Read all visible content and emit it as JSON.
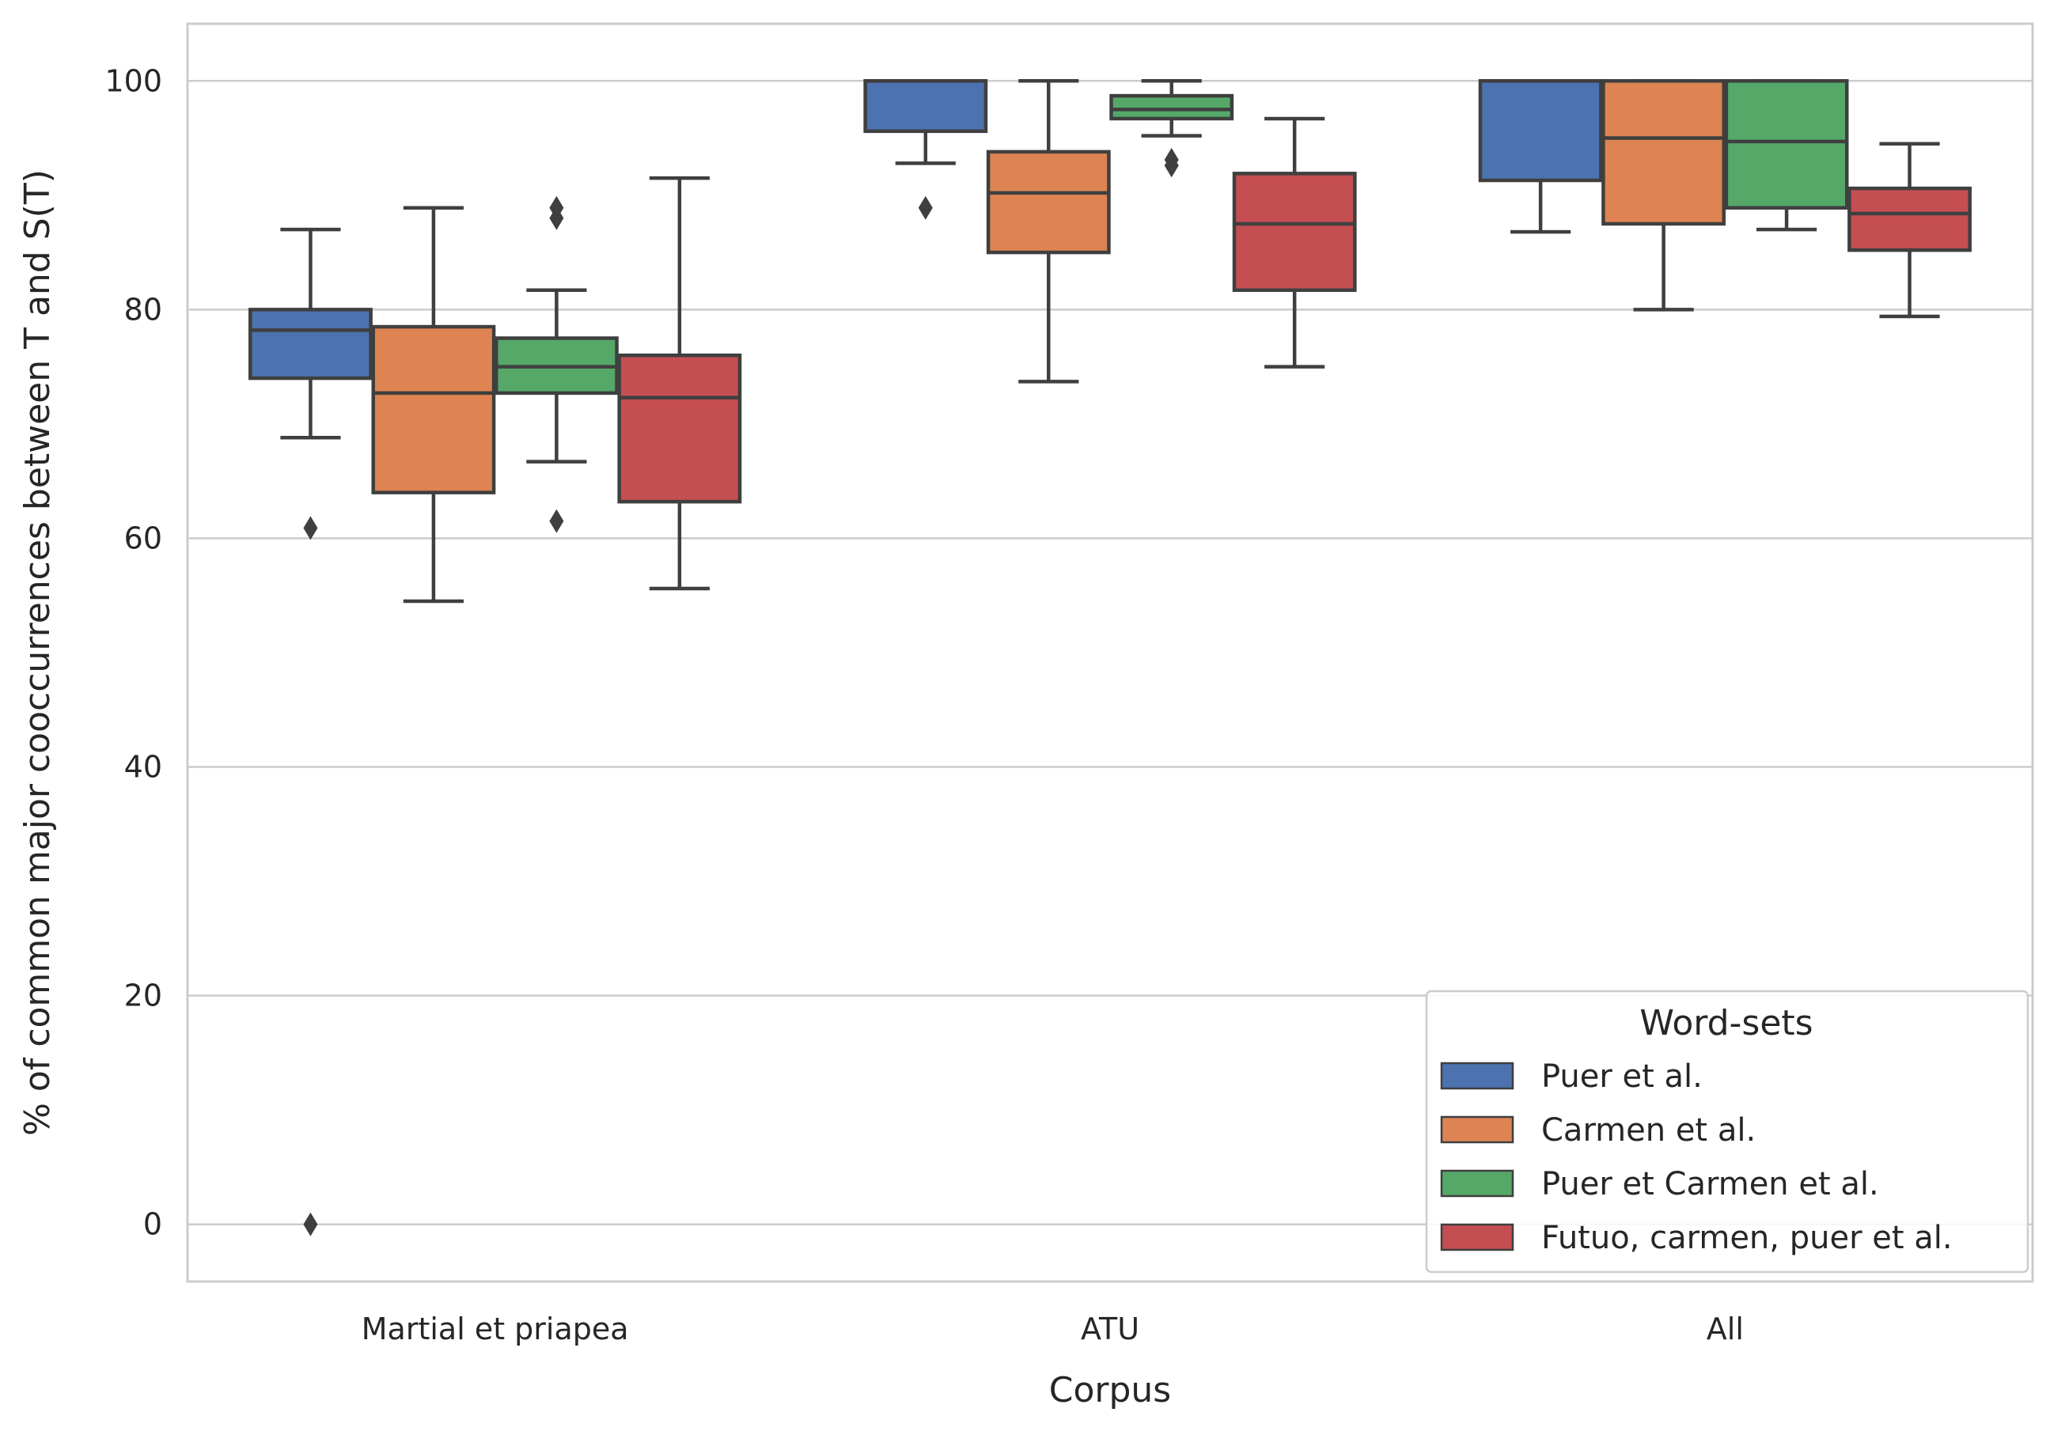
{
  "chart_data": {
    "type": "boxplot",
    "xlabel": "Corpus",
    "ylabel": "% of common major cooccurrences between T and S(T)",
    "categories": [
      "Martial et priapea",
      "ATU",
      "All"
    ],
    "ylim": [
      -5,
      105
    ],
    "yticks": [
      0,
      20,
      40,
      60,
      80,
      100
    ],
    "grid": "horizontal",
    "legend": {
      "title": "Word-sets",
      "position": "bottom-right"
    },
    "series": [
      {
        "name": "Puer et al.",
        "color": "#4c72b0",
        "boxes": [
          {
            "whisker_low": 68.8,
            "q1": 74.0,
            "median": 78.2,
            "q3": 80.0,
            "whisker_high": 87.0,
            "outliers": [
              60.9,
              0.0
            ]
          },
          {
            "whisker_low": 92.8,
            "q1": 95.6,
            "median": 100.0,
            "q3": 100.0,
            "whisker_high": 100.0,
            "outliers": [
              88.9
            ]
          },
          {
            "whisker_low": 86.8,
            "q1": 91.3,
            "median": 100.0,
            "q3": 100.0,
            "whisker_high": 100.0,
            "outliers": []
          }
        ]
      },
      {
        "name": "Carmen et al.",
        "color": "#dd8452",
        "boxes": [
          {
            "whisker_low": 54.5,
            "q1": 64.0,
            "median": 72.7,
            "q3": 78.5,
            "whisker_high": 88.9,
            "outliers": []
          },
          {
            "whisker_low": 73.7,
            "q1": 85.0,
            "median": 90.2,
            "q3": 93.8,
            "whisker_high": 100.0,
            "outliers": []
          },
          {
            "whisker_low": 80.0,
            "q1": 87.5,
            "median": 95.0,
            "q3": 100.0,
            "whisker_high": 100.0,
            "outliers": []
          }
        ]
      },
      {
        "name": "Puer et Carmen et al.",
        "color": "#55a868",
        "boxes": [
          {
            "whisker_low": 66.7,
            "q1": 72.7,
            "median": 75.0,
            "q3": 77.5,
            "whisker_high": 81.7,
            "outliers": [
              61.5,
              88.0,
              88.9
            ]
          },
          {
            "whisker_low": 95.2,
            "q1": 96.7,
            "median": 97.5,
            "q3": 98.7,
            "whisker_high": 100.0,
            "outliers": [
              92.6,
              93.1
            ]
          },
          {
            "whisker_low": 87.0,
            "q1": 88.9,
            "median": 94.7,
            "q3": 100.0,
            "whisker_high": 100.0,
            "outliers": []
          }
        ]
      },
      {
        "name": "Futuo, carmen, puer et al.",
        "color": "#c44e52",
        "boxes": [
          {
            "whisker_low": 55.6,
            "q1": 63.2,
            "median": 72.3,
            "q3": 76.0,
            "whisker_high": 91.5,
            "outliers": []
          },
          {
            "whisker_low": 75.0,
            "q1": 81.7,
            "median": 87.5,
            "q3": 91.9,
            "whisker_high": 96.7,
            "outliers": []
          },
          {
            "whisker_low": 79.4,
            "q1": 85.2,
            "median": 88.4,
            "q3": 90.6,
            "whisker_high": 94.5,
            "outliers": []
          }
        ]
      }
    ]
  }
}
